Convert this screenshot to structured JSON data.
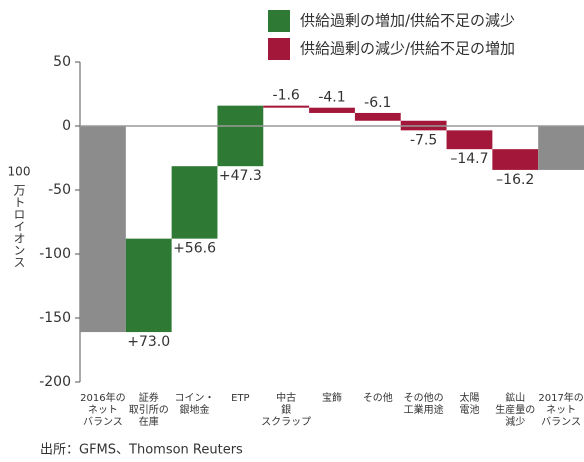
{
  "chart_data": {
    "type": "waterfall",
    "legend": [
      {
        "name": "供給過剰の増加/供給不足の減少",
        "color": "#2e7a34"
      },
      {
        "name": "供給過剰の減少/供給不足の増加",
        "color": "#a3173a"
      }
    ],
    "total_color": "#8c8c8c",
    "y_label_unit": "100",
    "y_label": "万トロイオンス",
    "categories": [
      "2016年の\nネット\nバランス",
      "証券\n取引所の\n在庫",
      "コイン・\n銀地金",
      "ETP",
      "中古\n銀\nスクラップ",
      "宝飾",
      "その他",
      "その他の\n工業用途",
      "太陽\n電池",
      "鉱山\n生産量の\n減少",
      "2017年の\nネット\nバランス"
    ],
    "bar_kinds": [
      "total",
      "delta",
      "delta",
      "delta",
      "delta",
      "delta",
      "delta",
      "delta",
      "delta",
      "delta",
      "total"
    ],
    "values": [
      -161,
      73,
      56.6,
      47.3,
      -1.6,
      -4.1,
      -6.1,
      -7.5,
      -14.7,
      -16.2,
      -34.3
    ],
    "value_labels": [
      null,
      "+73.0",
      "+56.6",
      "+47.3",
      "-1.6",
      "-4.1",
      "-6.1",
      "-7.5",
      "–14.7",
      "–16.2",
      null
    ],
    "ylim": [
      -200,
      50
    ],
    "yticks": [
      50,
      0,
      -50,
      -100,
      -150,
      -200
    ],
    "source": "出所：GFMS、Thomson Reuters"
  }
}
